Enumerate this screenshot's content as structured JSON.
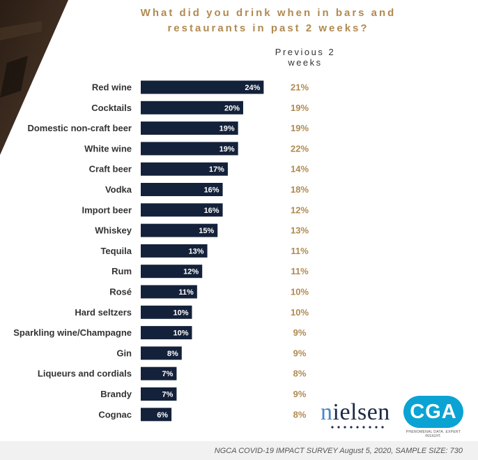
{
  "title": "What did you drink when in bars and restaurants in past 2 weeks?",
  "prev_header": "Previous 2 weeks",
  "chart_data": {
    "type": "bar",
    "orientation": "horizontal",
    "categories": [
      "Red wine",
      "Cocktails",
      "Domestic non-craft beer",
      "White wine",
      "Craft beer",
      "Vodka",
      "Import beer",
      "Whiskey",
      "Tequila",
      "Rum",
      "Rosé",
      "Hard seltzers",
      "Sparkling wine/Champagne",
      "Gin",
      "Liqueurs and cordials",
      "Brandy",
      "Cognac"
    ],
    "values": [
      24,
      20,
      19,
      19,
      17,
      16,
      16,
      15,
      13,
      12,
      11,
      10,
      10,
      8,
      7,
      7,
      6
    ],
    "value_labels": [
      "24%",
      "20%",
      "19%",
      "19%",
      "17%",
      "16%",
      "16%",
      "15%",
      "13%",
      "12%",
      "11%",
      "10%",
      "10%",
      "8%",
      "7%",
      "7%",
      "6%"
    ],
    "previous_labels": [
      "21%",
      "19%",
      "19%",
      "22%",
      "14%",
      "18%",
      "12%",
      "13%",
      "11%",
      "11%",
      "10%",
      "10%",
      "9%",
      "9%",
      "8%",
      "9%",
      "8%"
    ],
    "bar_color": "#14213a",
    "previous_color": "#b08a52",
    "grid": false
  },
  "logos": {
    "nielsen": "nielsen",
    "cga": "CGA",
    "cga_tagline": "PHENOMENAL DATA. EXPERT INSIGHT."
  },
  "footer": "NGCA COVID-19 IMPACT SURVEY August 5, 2020, SAMPLE SIZE: 730"
}
